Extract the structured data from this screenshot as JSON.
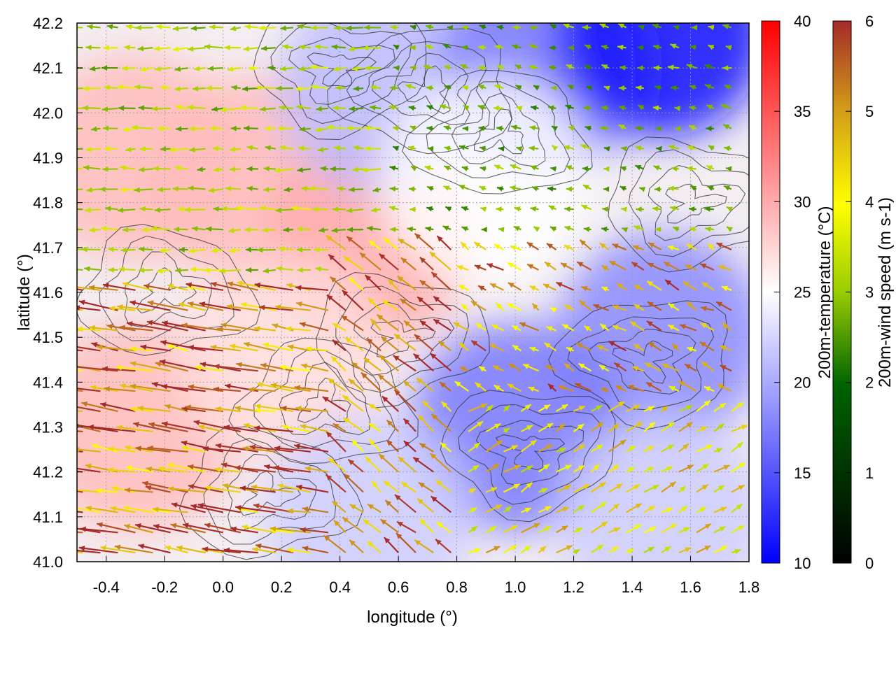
{
  "chart_data": {
    "type": "heatmap",
    "title": "",
    "xlabel": "longitude (°)",
    "ylabel": "latitude (°)",
    "xlim": [
      -0.5,
      1.8
    ],
    "ylim": [
      41.0,
      42.2
    ],
    "xticks": [
      "-0.4",
      "-0.2",
      "0.0",
      "0.2",
      "0.4",
      "0.6",
      "0.8",
      "1.0",
      "1.2",
      "1.4",
      "1.6",
      "1.8"
    ],
    "yticks": [
      "41.0",
      "41.1",
      "41.2",
      "41.3",
      "41.4",
      "41.5",
      "41.6",
      "41.7",
      "41.8",
      "41.9",
      "42.0",
      "42.1",
      "42.2"
    ],
    "grid": true,
    "temperature_colorbar": {
      "label": "200m-temperature (°C)",
      "range": [
        10,
        40
      ],
      "ticks": [
        "10",
        "15",
        "20",
        "25",
        "30",
        "35",
        "40"
      ],
      "colors": [
        "#0000ff",
        "#ffffff",
        "#ff0000"
      ]
    },
    "wind_colorbar": {
      "label": "200m-wind speed (m s-1)",
      "range": [
        0,
        6
      ],
      "ticks": [
        "0",
        "1",
        "2",
        "3",
        "4",
        "5",
        "6"
      ],
      "colors": [
        "#000000",
        "#006400",
        "#99cc00",
        "#ffff00",
        "#d4a017",
        "#a52a2a"
      ]
    },
    "temperature_regions": [
      {
        "lon": -0.3,
        "lat": 41.9,
        "t": 29
      },
      {
        "lon": 0.1,
        "lat": 41.85,
        "t": 29
      },
      {
        "lon": 0.5,
        "lat": 41.72,
        "t": 30
      },
      {
        "lon": -0.3,
        "lat": 41.3,
        "t": 29
      },
      {
        "lon": 0.2,
        "lat": 41.45,
        "t": 27
      },
      {
        "lon": 0.55,
        "lat": 42.05,
        "t": 21
      },
      {
        "lon": 1.1,
        "lat": 42.1,
        "t": 17
      },
      {
        "lon": 1.5,
        "lat": 42.18,
        "t": 11
      },
      {
        "lon": 1.5,
        "lat": 41.5,
        "t": 18
      },
      {
        "lon": 1.0,
        "lat": 41.3,
        "t": 17
      },
      {
        "lon": 1.5,
        "lat": 41.1,
        "t": 22
      },
      {
        "lon": 0.5,
        "lat": 41.1,
        "t": 22
      },
      {
        "lon": 0.9,
        "lat": 41.85,
        "t": 25
      }
    ],
    "wind_regions": [
      {
        "lon_range": [
          -0.5,
          0.4
        ],
        "lat_range": [
          41.0,
          41.65
        ],
        "u": -2.4,
        "v": 0.4,
        "speed": 6
      },
      {
        "lon_range": [
          0.4,
          0.8
        ],
        "lat_range": [
          41.0,
          41.7
        ],
        "u": -1.2,
        "v": 1.0,
        "speed": 6
      },
      {
        "lon_range": [
          0.8,
          1.8
        ],
        "lat_range": [
          41.0,
          41.35
        ],
        "u": 1.0,
        "v": 0.6,
        "speed": 4.5
      },
      {
        "lon_range": [
          0.8,
          1.8
        ],
        "lat_range": [
          41.35,
          41.7
        ],
        "u": -0.9,
        "v": 0.5,
        "speed": 5.5
      },
      {
        "lon_range": [
          -0.5,
          0.6
        ],
        "lat_range": [
          41.65,
          42.2
        ],
        "u": -1.5,
        "v": 0.0,
        "speed": 3
      },
      {
        "lon_range": [
          0.6,
          1.8
        ],
        "lat_range": [
          41.7,
          42.2
        ],
        "u": -0.8,
        "v": 0.2,
        "speed": 2.5
      }
    ]
  }
}
